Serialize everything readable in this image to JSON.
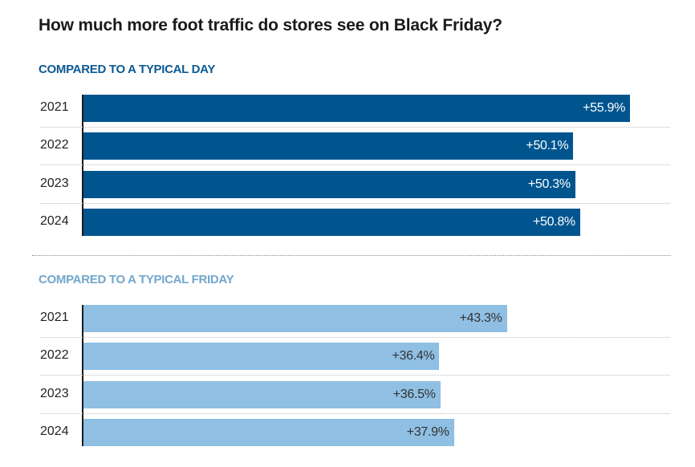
{
  "chart_data": [
    {
      "type": "bar",
      "orientation": "horizontal",
      "title": "How much more foot traffic do stores see on Black Friday?",
      "subtitle": "COMPARED TO A TYPICAL DAY",
      "categories": [
        "2021",
        "2022",
        "2023",
        "2024"
      ],
      "values": [
        55.9,
        50.1,
        50.3,
        50.8
      ],
      "labels": [
        "+55.9%",
        "+50.1%",
        "+50.3%",
        "+50.8%"
      ],
      "unit": "%",
      "xlim": [
        0,
        60
      ],
      "color": "#00558f",
      "label_color": "#ffffff",
      "grid": false
    },
    {
      "type": "bar",
      "orientation": "horizontal",
      "title": "How much more foot traffic do stores see on Black Friday?",
      "subtitle": "COMPARED TO A TYPICAL FRIDAY",
      "categories": [
        "2021",
        "2022",
        "2023",
        "2024"
      ],
      "values": [
        43.3,
        36.4,
        36.5,
        37.9
      ],
      "labels": [
        "+43.3%",
        "+36.4%",
        "+36.5%",
        "+37.9%"
      ],
      "unit": "%",
      "xlim": [
        0,
        60
      ],
      "color": "#8fbfe3",
      "label_color": "#333333",
      "grid": false
    }
  ],
  "page": {
    "title": "How much more foot traffic do stores see on Black Friday?",
    "sections": [
      {
        "heading": "COMPARED TO A TYPICAL DAY",
        "heading_color": "#0b5a94"
      },
      {
        "heading": "COMPARED TO A TYPICAL FRIDAY",
        "heading_color": "#73a6cc"
      }
    ]
  }
}
